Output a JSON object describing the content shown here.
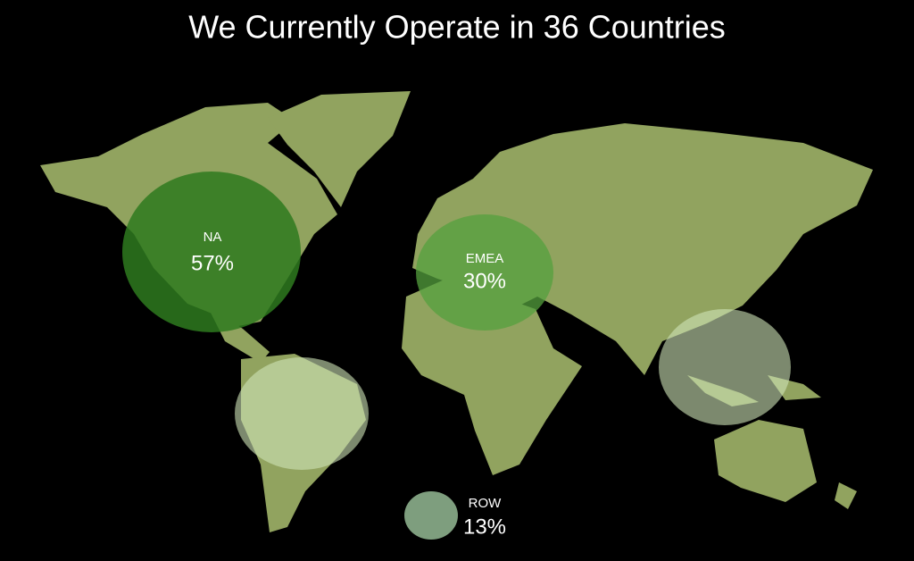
{
  "header": {
    "title": "We Currently Operate in 36 Countries"
  },
  "regions": [
    {
      "name": "NA",
      "share": "57%"
    },
    {
      "name": "EMEA",
      "share": "30%"
    },
    {
      "name": "ROW",
      "share": "13%"
    }
  ]
}
